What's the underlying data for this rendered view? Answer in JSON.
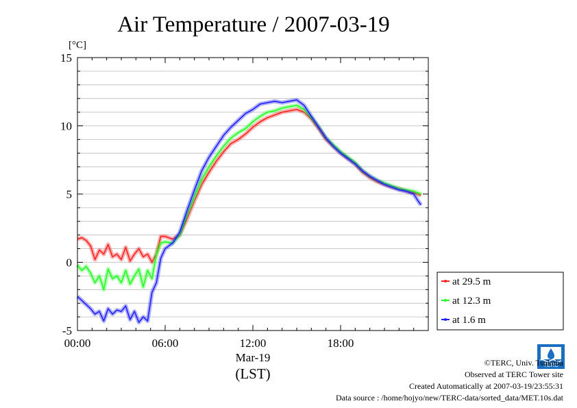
{
  "chart_data": {
    "type": "line",
    "title": "Air Temperature / 2007-03-19",
    "ylabel": "[°C]",
    "xlabel": "(LST)",
    "date_label": "Mar-19",
    "x_ticks": [
      "00:00",
      "06:00",
      "12:00",
      "18:00"
    ],
    "x_tick_hours": [
      0,
      6,
      12,
      18
    ],
    "xlim_hours": [
      0,
      24
    ],
    "y_ticks": [
      -5,
      0,
      5,
      10,
      15
    ],
    "ylim": [
      -5,
      15
    ],
    "grid": true,
    "legend_position": "right-bottom",
    "series": [
      {
        "name": "at 29.5 m",
        "color": "#ff2020",
        "x": [
          0,
          0.3,
          0.6,
          0.9,
          1.2,
          1.5,
          1.8,
          2.1,
          2.4,
          2.7,
          3.0,
          3.3,
          3.6,
          3.9,
          4.2,
          4.5,
          4.8,
          5.1,
          5.4,
          5.7,
          6.0,
          6.5,
          7.0,
          7.5,
          8.0,
          8.5,
          9.0,
          9.5,
          10.0,
          10.5,
          11.0,
          11.5,
          12.0,
          12.5,
          13.0,
          13.5,
          14.0,
          14.5,
          15.0,
          15.5,
          16.0,
          16.5,
          17.0,
          17.5,
          18.0,
          18.5,
          19.0,
          19.5,
          20.0,
          20.5,
          21.0,
          21.5,
          22.0,
          22.5,
          23.0,
          23.5
        ],
        "values": [
          1.7,
          1.8,
          1.6,
          1.2,
          0.2,
          0.9,
          0.6,
          1.3,
          0.4,
          0.6,
          0.2,
          1.1,
          0.1,
          0.6,
          1.0,
          0.4,
          0.6,
          0.0,
          0.6,
          1.9,
          1.9,
          1.7,
          2.0,
          3.2,
          4.5,
          5.7,
          6.6,
          7.4,
          8.1,
          8.7,
          9.0,
          9.4,
          9.9,
          10.3,
          10.6,
          10.8,
          11.0,
          11.1,
          11.2,
          11.0,
          10.5,
          9.8,
          9.0,
          8.5,
          8.0,
          7.6,
          7.2,
          6.6,
          6.2,
          5.9,
          5.7,
          5.5,
          5.4,
          5.2,
          5.1,
          4.9
        ]
      },
      {
        "name": "at 12.3 m",
        "color": "#20ff20",
        "x": [
          0,
          0.3,
          0.6,
          0.9,
          1.2,
          1.5,
          1.8,
          2.1,
          2.4,
          2.7,
          3.0,
          3.3,
          3.6,
          3.9,
          4.2,
          4.5,
          4.8,
          5.1,
          5.4,
          5.7,
          6.0,
          6.5,
          7.0,
          7.5,
          8.0,
          8.5,
          9.0,
          9.5,
          10.0,
          10.5,
          11.0,
          11.5,
          12.0,
          12.5,
          13.0,
          13.5,
          14.0,
          14.5,
          15.0,
          15.5,
          16.0,
          16.5,
          17.0,
          17.5,
          18.0,
          18.5,
          19.0,
          19.5,
          20.0,
          20.5,
          21.0,
          21.5,
          22.0,
          22.5,
          23.0,
          23.5
        ],
        "values": [
          -0.2,
          -0.6,
          -0.3,
          -0.8,
          -1.5,
          -1.0,
          -2.0,
          -0.5,
          -1.2,
          -1.0,
          -1.5,
          -0.6,
          -1.6,
          -1.0,
          -0.5,
          -1.8,
          -0.6,
          -1.2,
          0.6,
          1.4,
          1.5,
          1.4,
          2.0,
          3.5,
          4.8,
          6.1,
          7.0,
          7.8,
          8.5,
          9.1,
          9.5,
          9.8,
          10.3,
          10.7,
          11.0,
          11.1,
          11.3,
          11.4,
          11.5,
          11.2,
          10.6,
          9.9,
          9.1,
          8.6,
          8.1,
          7.7,
          7.3,
          6.7,
          6.3,
          6.0,
          5.8,
          5.6,
          5.4,
          5.3,
          5.2,
          5.0
        ]
      },
      {
        "name": "at 1.6 m",
        "color": "#2020ff",
        "x": [
          0,
          0.3,
          0.6,
          0.9,
          1.2,
          1.5,
          1.8,
          2.1,
          2.4,
          2.7,
          3.0,
          3.3,
          3.6,
          3.9,
          4.2,
          4.5,
          4.8,
          5.1,
          5.4,
          5.7,
          6.0,
          6.5,
          7.0,
          7.5,
          8.0,
          8.5,
          9.0,
          9.5,
          10.0,
          10.5,
          11.0,
          11.5,
          12.0,
          12.5,
          13.0,
          13.5,
          14.0,
          14.5,
          15.0,
          15.5,
          16.0,
          16.5,
          17.0,
          17.5,
          18.0,
          18.5,
          19.0,
          19.5,
          20.0,
          20.5,
          21.0,
          21.5,
          22.0,
          22.5,
          23.0,
          23.3,
          23.5
        ],
        "values": [
          -2.5,
          -2.8,
          -3.1,
          -3.4,
          -3.8,
          -3.6,
          -4.3,
          -3.4,
          -3.8,
          -3.5,
          -3.6,
          -3.2,
          -4.2,
          -3.6,
          -4.4,
          -4.0,
          -4.3,
          -2.2,
          -1.5,
          0.3,
          1.0,
          1.4,
          2.2,
          3.8,
          5.3,
          6.7,
          7.7,
          8.5,
          9.3,
          9.9,
          10.4,
          10.9,
          11.2,
          11.6,
          11.7,
          11.8,
          11.7,
          11.8,
          11.9,
          11.5,
          10.7,
          9.9,
          9.1,
          8.5,
          8.0,
          7.6,
          7.2,
          6.7,
          6.3,
          6.0,
          5.7,
          5.5,
          5.3,
          5.2,
          5.0,
          4.5,
          4.2
        ]
      }
    ]
  },
  "footer": {
    "copyright": "©TERC, Univ. Tsukuba",
    "observed": "Observed at TERC Tower site",
    "created": "Created Automatically at 2007-03-19/23:55:31",
    "source": "Data source : /home/hojyo/new/TERC-data/sorted_data/MET.10s.dat"
  },
  "logo_text": "TERC"
}
